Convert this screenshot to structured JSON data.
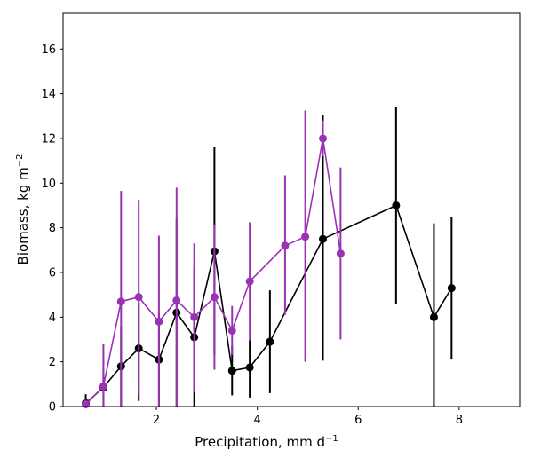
{
  "chart_data": {
    "type": "line",
    "title": "",
    "xlabel": "Precipitation,  mm d",
    "xlabel_superscript": "−1",
    "ylabel": "Biomass,  kg m",
    "ylabel_superscript": "−2",
    "xlim": [
      0.15,
      9.2
    ],
    "ylim": [
      0,
      17.6
    ],
    "xticks": [
      2,
      4,
      6,
      8
    ],
    "yticks": [
      0,
      2,
      4,
      6,
      8,
      10,
      12,
      14,
      16
    ],
    "grid": false,
    "legend": "none",
    "series": [
      {
        "color": "#000000",
        "points": [
          {
            "x": 0.6,
            "y": 0.15,
            "err_low": 0.0,
            "err_high": 0.4
          },
          {
            "x": 0.95,
            "y": 0.85,
            "err_low": 0.85,
            "err_high": 0.85
          },
          {
            "x": 1.3,
            "y": 1.8,
            "err_low": 1.8,
            "err_high": 1.8
          },
          {
            "x": 1.65,
            "y": 2.6,
            "err_low": 2.35,
            "err_high": 2.05
          },
          {
            "x": 2.05,
            "y": 2.1,
            "err_low": 2.1,
            "err_high": 2.1
          },
          {
            "x": 2.4,
            "y": 4.2,
            "err_low": 4.2,
            "err_high": 4.2
          },
          {
            "x": 2.75,
            "y": 3.1,
            "err_low": 3.1,
            "err_high": 3.1
          },
          {
            "x": 3.15,
            "y": 6.95,
            "err_low": 4.65,
            "err_high": 4.65
          },
          {
            "x": 3.5,
            "y": 1.6,
            "err_low": 1.1,
            "err_high": 1.1
          },
          {
            "x": 3.85,
            "y": 1.75,
            "err_low": 1.35,
            "err_high": 1.25
          },
          {
            "x": 4.25,
            "y": 2.9,
            "err_low": 2.3,
            "err_high": 2.3
          },
          {
            "x": 5.3,
            "y": 7.5,
            "err_low": 5.45,
            "err_high": 5.55
          },
          {
            "x": 6.75,
            "y": 9.0,
            "err_low": 4.4,
            "err_high": 4.4
          },
          {
            "x": 7.5,
            "y": 4.0,
            "err_low": 4.0,
            "err_high": 4.2
          },
          {
            "x": 7.85,
            "y": 5.3,
            "err_low": 3.2,
            "err_high": 3.2
          }
        ]
      },
      {
        "color": "#9b32b4",
        "points": [
          {
            "x": 0.6,
            "y": 0.1,
            "err_low": 0.1,
            "err_high": 0.2
          },
          {
            "x": 0.95,
            "y": 0.9,
            "err_low": 0.9,
            "err_high": 1.9
          },
          {
            "x": 1.3,
            "y": 4.7,
            "err_low": 4.7,
            "err_high": 4.95
          },
          {
            "x": 1.65,
            "y": 4.9,
            "err_low": 4.35,
            "err_high": 4.35
          },
          {
            "x": 2.05,
            "y": 3.8,
            "err_low": 3.8,
            "err_high": 3.85
          },
          {
            "x": 2.4,
            "y": 4.75,
            "err_low": 4.75,
            "err_high": 5.05
          },
          {
            "x": 2.75,
            "y": 4.0,
            "err_low": 3.35,
            "err_high": 3.3
          },
          {
            "x": 3.15,
            "y": 4.9,
            "err_low": 3.25,
            "err_high": 3.25
          },
          {
            "x": 3.5,
            "y": 3.4,
            "err_low": 1.1,
            "err_high": 1.1
          },
          {
            "x": 3.85,
            "y": 5.6,
            "err_low": 2.65,
            "err_high": 2.65
          },
          {
            "x": 4.55,
            "y": 7.2,
            "err_low": 3.1,
            "err_high": 3.15
          },
          {
            "x": 4.95,
            "y": 7.6,
            "err_low": 5.6,
            "err_high": 5.65
          },
          {
            "x": 5.3,
            "y": 12.0,
            "err_low": 0.8,
            "err_high": 0.8
          },
          {
            "x": 5.65,
            "y": 6.85,
            "err_low": 3.85,
            "err_high": 3.85
          }
        ]
      }
    ]
  }
}
